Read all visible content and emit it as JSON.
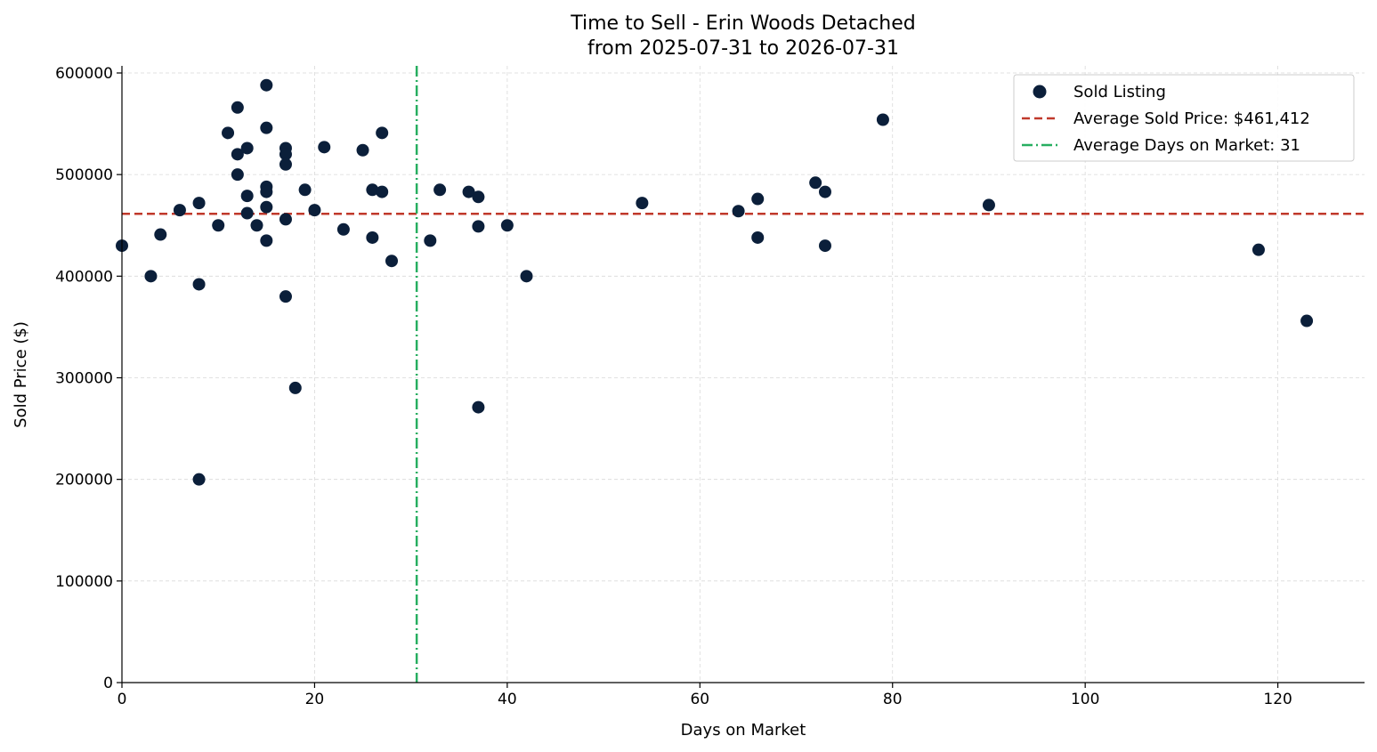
{
  "chart_data": {
    "type": "scatter",
    "title": "Time to Sell - Erin Woods Detached",
    "subtitle": "from 2025-07-31 to 2026-07-31",
    "xlabel": "Days on Market",
    "ylabel": "Sold Price ($)",
    "xlim": [
      0,
      129
    ],
    "ylim": [
      0,
      607000
    ],
    "xticks": [
      0,
      20,
      40,
      60,
      80,
      100,
      120
    ],
    "yticks": [
      0,
      100000,
      200000,
      300000,
      400000,
      500000,
      600000
    ],
    "grid": true,
    "legend_position": "top-right",
    "series": [
      {
        "name": "Sold Listing",
        "color": "#0b1f3a",
        "points": [
          [
            0,
            430000
          ],
          [
            3,
            400000
          ],
          [
            4,
            441000
          ],
          [
            6,
            465000
          ],
          [
            8,
            472000
          ],
          [
            8,
            392000
          ],
          [
            8,
            200000
          ],
          [
            10,
            450000
          ],
          [
            11,
            541000
          ],
          [
            12,
            566000
          ],
          [
            12,
            520000
          ],
          [
            12,
            500000
          ],
          [
            13,
            526000
          ],
          [
            13,
            479000
          ],
          [
            13,
            462000
          ],
          [
            14,
            450000
          ],
          [
            15,
            588000
          ],
          [
            15,
            546000
          ],
          [
            15,
            488000
          ],
          [
            15,
            483000
          ],
          [
            15,
            468000
          ],
          [
            15,
            435000
          ],
          [
            17,
            526000
          ],
          [
            17,
            520000
          ],
          [
            17,
            510000
          ],
          [
            17,
            456000
          ],
          [
            17,
            380000
          ],
          [
            18,
            290000
          ],
          [
            19,
            485000
          ],
          [
            20,
            465000
          ],
          [
            21,
            527000
          ],
          [
            23,
            446000
          ],
          [
            25,
            524000
          ],
          [
            26,
            485000
          ],
          [
            26,
            438000
          ],
          [
            27,
            541000
          ],
          [
            27,
            483000
          ],
          [
            28,
            415000
          ],
          [
            32,
            435000
          ],
          [
            33,
            485000
          ],
          [
            36,
            483000
          ],
          [
            37,
            478000
          ],
          [
            37,
            449000
          ],
          [
            37,
            271000
          ],
          [
            40,
            450000
          ],
          [
            42,
            400000
          ],
          [
            54,
            472000
          ],
          [
            64,
            464000
          ],
          [
            66,
            476000
          ],
          [
            66,
            438000
          ],
          [
            72,
            492000
          ],
          [
            73,
            483000
          ],
          [
            73,
            430000
          ],
          [
            79,
            554000
          ],
          [
            90,
            470000
          ],
          [
            118,
            426000
          ],
          [
            123,
            356000
          ]
        ]
      }
    ],
    "reference_lines": {
      "average_price": {
        "value": 461412,
        "label": "Average Sold Price: $461,412",
        "color": "#c0392b",
        "style": "dashed"
      },
      "average_days": {
        "value": 30.6,
        "label": "Average Days on Market: 31",
        "color": "#27ae60",
        "style": "dash-dot"
      }
    },
    "legend": [
      "Sold Listing",
      "Average Sold Price: $461,412",
      "Average Days on Market: 31"
    ]
  }
}
